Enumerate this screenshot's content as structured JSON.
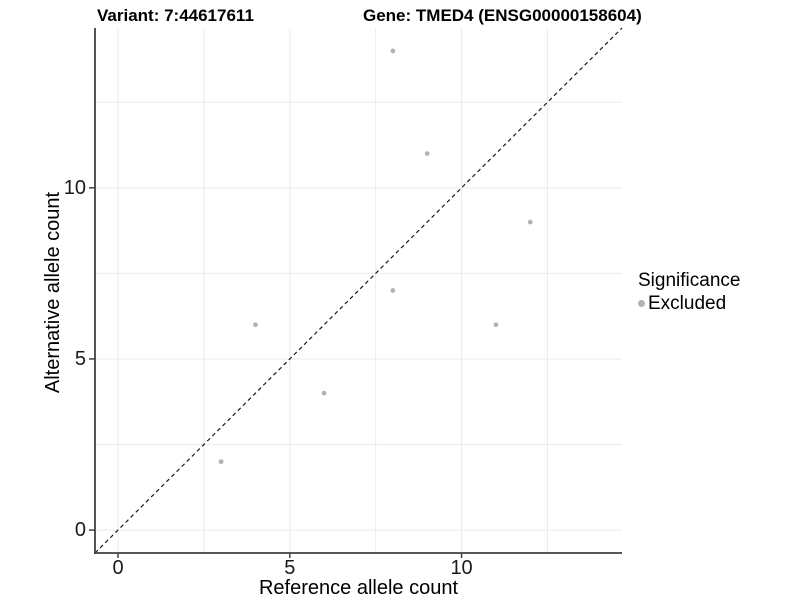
{
  "figure": {
    "title_left": "Variant: 7:44617611",
    "title_right": "Gene: TMED4 (ENSG00000158604)"
  },
  "legend": {
    "title": "Significance",
    "items": [
      {
        "label": "Excluded",
        "color": "#b3b3b3"
      }
    ]
  },
  "chart_data": {
    "type": "scatter",
    "title_left": "Variant: 7:44617611",
    "title_right": "Gene: TMED4 (ENSG00000158604)",
    "xlabel": "Reference allele count",
    "ylabel": "Alternative allele count",
    "xlim": [
      -0.67,
      14.67
    ],
    "ylim": [
      -0.67,
      14.67
    ],
    "x_ticks": [
      0,
      5,
      10
    ],
    "y_ticks": [
      0,
      5,
      10
    ],
    "grid_values": [
      0,
      2.5,
      5,
      7.5,
      10,
      12.5
    ],
    "grid": true,
    "legend_position": "right",
    "series": [
      {
        "name": "Excluded",
        "color": "#b3b3b3",
        "marker_radius": 2.4,
        "points": [
          [
            3,
            2
          ],
          [
            4,
            6
          ],
          [
            6,
            4
          ],
          [
            8,
            7
          ],
          [
            8,
            14
          ],
          [
            9,
            11
          ],
          [
            11,
            6
          ],
          [
            12,
            9
          ]
        ]
      }
    ],
    "reference_line": {
      "kind": "identity",
      "dash": [
        4,
        3.2
      ],
      "color": "#1a1a1a"
    }
  },
  "colors": {
    "grid": "#ebebeb",
    "axis_line": "#404040",
    "tick_label": "#1a1a1a",
    "point": "#b3b3b3",
    "background": "#ffffff"
  }
}
